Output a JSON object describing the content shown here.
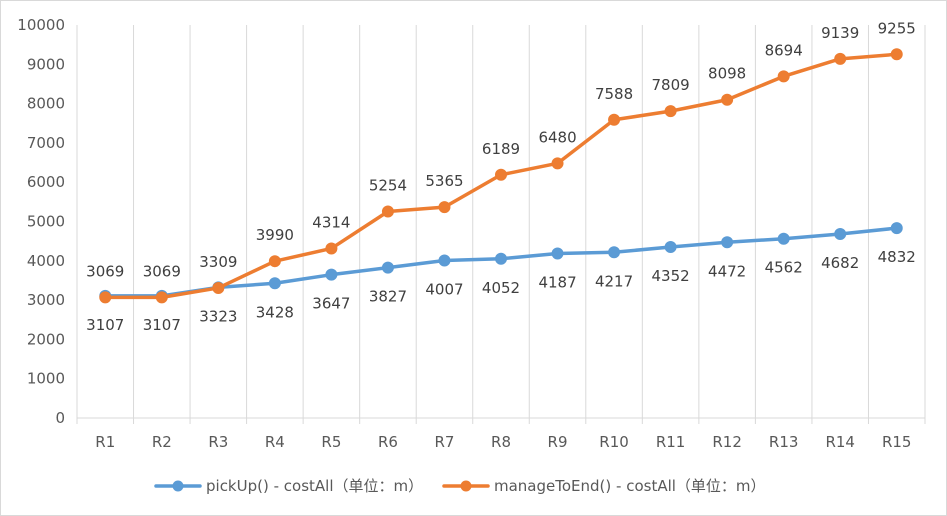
{
  "chart_data": {
    "type": "line",
    "categories": [
      "R1",
      "R2",
      "R3",
      "R4",
      "R5",
      "R6",
      "R7",
      "R8",
      "R9",
      "R10",
      "R11",
      "R12",
      "R13",
      "R14",
      "R15"
    ],
    "series": [
      {
        "name": "pickUp() - costAll（单位：m）",
        "color": "#5b9bd5",
        "values": [
          3107,
          3107,
          3323,
          3428,
          3647,
          3827,
          4007,
          4052,
          4187,
          4217,
          4352,
          4472,
          4562,
          4682,
          4832
        ],
        "label_position": "below"
      },
      {
        "name": "manageToEnd() - costAll（单位：m）",
        "color": "#ed7d31",
        "values": [
          3069,
          3069,
          3309,
          3990,
          4314,
          5254,
          5365,
          6189,
          6480,
          7588,
          7809,
          8098,
          8694,
          9139,
          9255
        ],
        "label_position": "above"
      }
    ],
    "ylim": [
      0,
      10000
    ],
    "yticks": [
      0,
      1000,
      2000,
      3000,
      4000,
      5000,
      6000,
      7000,
      8000,
      9000,
      10000
    ],
    "grid": "vertical category dividers",
    "legend": "bottom-center",
    "title": "",
    "xlabel": "",
    "ylabel": ""
  }
}
